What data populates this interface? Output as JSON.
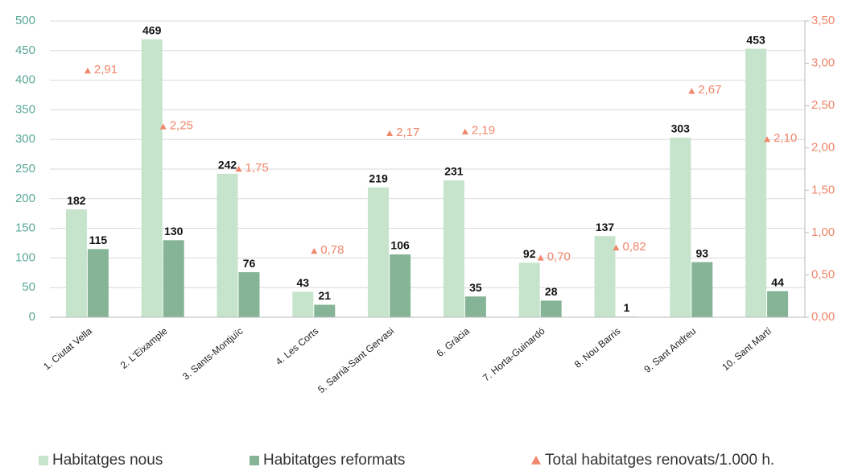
{
  "chart_data": {
    "type": "bar",
    "categories": [
      "1. Ciutat Vella",
      "2. L'Eixample",
      "3. Sants-Montjuïc",
      "4. Les Corts",
      "5. Sarrià-Sant Gervasi",
      "6. Gràcia",
      "7. Horta-Guinardó",
      "8. Nou Barris",
      "9. Sant Andreu",
      "10. Sant Martí"
    ],
    "series": [
      {
        "name": "Habitatges nous",
        "color": "#c5e4cb",
        "values": [
          182,
          469,
          242,
          43,
          219,
          231,
          92,
          137,
          303,
          453
        ]
      },
      {
        "name": "Habitatges reformats",
        "color": "#85b596",
        "values": [
          115,
          130,
          76,
          21,
          106,
          35,
          28,
          1,
          93,
          44
        ]
      },
      {
        "name": "Total habitatges renovats/1.000 h.",
        "color": "#f0866a",
        "axis": "y2",
        "type": "scatter",
        "values": [
          2.91,
          2.25,
          1.75,
          0.78,
          2.17,
          2.19,
          0.7,
          0.82,
          2.67,
          2.1
        ],
        "value_labels": [
          "2,91",
          "2,25",
          "1,75",
          "0,78",
          "2,17",
          "2,19",
          "0,70",
          "0,82",
          "2,67",
          "2,10"
        ]
      }
    ],
    "ylim": [
      0,
      500
    ],
    "yticks": [
      0,
      50,
      100,
      150,
      200,
      250,
      300,
      350,
      400,
      450,
      500
    ],
    "y2lim": [
      0,
      3.5
    ],
    "y2ticks": [
      {
        "value": 0,
        "label": "0,00"
      },
      {
        "value": 0.5,
        "label": "0,50"
      },
      {
        "value": 1,
        "label": "1,00"
      },
      {
        "value": 1.5,
        "label": "1,50"
      },
      {
        "value": 2,
        "label": "2,00"
      },
      {
        "value": 2.5,
        "label": "2,50"
      },
      {
        "value": 3,
        "label": "3,00"
      },
      {
        "value": 3.5,
        "label": "3,50"
      }
    ],
    "grid": true,
    "legend": "bottom"
  }
}
